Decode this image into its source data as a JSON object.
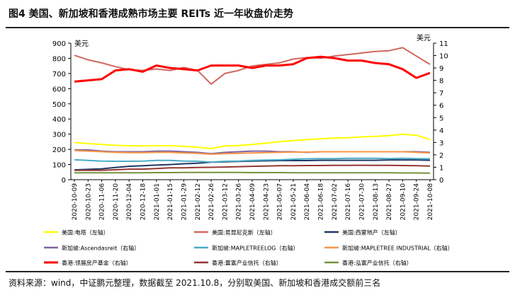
{
  "title": "图4  美国、新加坡和香港成熟市场主要 REITs 近一年收盘价走势",
  "source": "资料来源：wind，中证鹏元整理，数据截至 2021.10.8，分别取美国、新加坡和香港成交额前三名",
  "chart_data": {
    "type": "line",
    "left_axis": {
      "unit": "美元",
      "min": 0,
      "max": 900,
      "ticks": [
        0,
        100,
        200,
        300,
        400,
        500,
        600,
        700,
        800,
        900
      ]
    },
    "right_axis": {
      "unit": "美元",
      "min": 0,
      "max": 11,
      "ticks": [
        0,
        1,
        2,
        3,
        4,
        5,
        6,
        7,
        8,
        9,
        10,
        11
      ]
    },
    "x_labels": [
      "2020-10-09",
      "2020-10-23",
      "2020-11-06",
      "2020-11-20",
      "2020-12-04",
      "2020-12-18",
      "2021-01-01",
      "2021-01-15",
      "2021-01-29",
      "2021-02-12",
      "2021-02-26",
      "2021-03-12",
      "2021-03-26",
      "2021-04-09",
      "2021-04-23",
      "2021-05-07",
      "2021-05-21",
      "2021-06-04",
      "2021-06-18",
      "2021-07-02",
      "2021-07-16",
      "2021-07-30",
      "2021-08-13",
      "2021-08-27",
      "2021-09-10",
      "2021-09-24",
      "2021-10-08"
    ],
    "grid": false,
    "legend_position": "bottom",
    "series": [
      {
        "name": "美国:电塔（左轴）",
        "axis": "left",
        "color": "#ffff00",
        "values": [
          245,
          238,
          232,
          226,
          224,
          223,
          224,
          224,
          220,
          214,
          205,
          222,
          225,
          232,
          240,
          250,
          258,
          264,
          270,
          274,
          276,
          282,
          285,
          290,
          300,
          293,
          265
        ]
      },
      {
        "name": "美国:易昆尼克斯（左轴）",
        "axis": "left",
        "color": "#d0675e",
        "values": [
          820,
          790,
          770,
          745,
          725,
          720,
          730,
          720,
          740,
          720,
          630,
          700,
          720,
          750,
          760,
          770,
          795,
          805,
          800,
          815,
          825,
          835,
          845,
          850,
          870,
          815,
          760
        ]
      },
      {
        "name": "美国:西蒙地产（左轴）",
        "axis": "left",
        "color": "#1f3864",
        "values": [
          65,
          68,
          72,
          80,
          88,
          92,
          96,
          100,
          105,
          108,
          115,
          118,
          120,
          122,
          124,
          126,
          126,
          126,
          128,
          128,
          128,
          128,
          128,
          130,
          130,
          130,
          128
        ]
      },
      {
        "name": "新加坡:Ascendasreit（右轴）",
        "axis": "right",
        "color": "#8064a2",
        "values": [
          2.4,
          2.4,
          2.3,
          2.25,
          2.25,
          2.25,
          2.3,
          2.3,
          2.25,
          2.2,
          2.1,
          2.2,
          2.25,
          2.3,
          2.3,
          2.25,
          2.25,
          2.2,
          2.25,
          2.25,
          2.25,
          2.25,
          2.25,
          2.25,
          2.25,
          2.25,
          2.2
        ]
      },
      {
        "name": "新加坡:MAPLETREELOG（右轴）",
        "axis": "right",
        "color": "#4bacc6",
        "values": [
          1.6,
          1.55,
          1.5,
          1.48,
          1.48,
          1.5,
          1.55,
          1.55,
          1.5,
          1.48,
          1.42,
          1.48,
          1.5,
          1.55,
          1.58,
          1.6,
          1.65,
          1.68,
          1.7,
          1.7,
          1.72,
          1.72,
          1.72,
          1.7,
          1.72,
          1.7,
          1.68
        ]
      },
      {
        "name": "新加坡:MAPLETREE INDUSTRIAL（右轴）",
        "axis": "right",
        "color": "#f79646",
        "values": [
          2.35,
          2.3,
          2.25,
          2.2,
          2.18,
          2.18,
          2.2,
          2.2,
          2.15,
          2.12,
          2.05,
          2.1,
          2.12,
          2.15,
          2.18,
          2.2,
          2.22,
          2.22,
          2.25,
          2.25,
          2.25,
          2.25,
          2.25,
          2.25,
          2.25,
          2.2,
          2.15
        ]
      },
      {
        "name": "香港:领展房产基金（右轴）",
        "axis": "right",
        "color": "#ff0000",
        "values": [
          7.9,
          8.0,
          8.1,
          8.8,
          8.9,
          8.7,
          9.2,
          9.0,
          8.9,
          8.8,
          9.2,
          9.2,
          9.2,
          9.0,
          9.2,
          9.2,
          9.3,
          9.8,
          9.9,
          9.8,
          9.6,
          9.6,
          9.4,
          9.3,
          8.9,
          8.2,
          8.6
        ]
      },
      {
        "name": "香港:置富产业信托（右轴）",
        "axis": "right",
        "color": "#943634",
        "values": [
          0.75,
          0.75,
          0.75,
          0.8,
          0.85,
          0.85,
          0.9,
          0.95,
          0.95,
          0.98,
          1.0,
          1.02,
          1.05,
          1.08,
          1.1,
          1.12,
          1.12,
          1.14,
          1.14,
          1.15,
          1.15,
          1.16,
          1.15,
          1.15,
          1.14,
          1.12,
          1.1
        ]
      },
      {
        "name": "香港:泓富产业信托（右轴）",
        "axis": "right",
        "color": "#76923c",
        "values": [
          0.55,
          0.55,
          0.55,
          0.55,
          0.56,
          0.56,
          0.57,
          0.57,
          0.58,
          0.58,
          0.58,
          0.58,
          0.58,
          0.57,
          0.57,
          0.57,
          0.56,
          0.56,
          0.56,
          0.55,
          0.55,
          0.55,
          0.55,
          0.55,
          0.54,
          0.54,
          0.53
        ]
      }
    ]
  }
}
